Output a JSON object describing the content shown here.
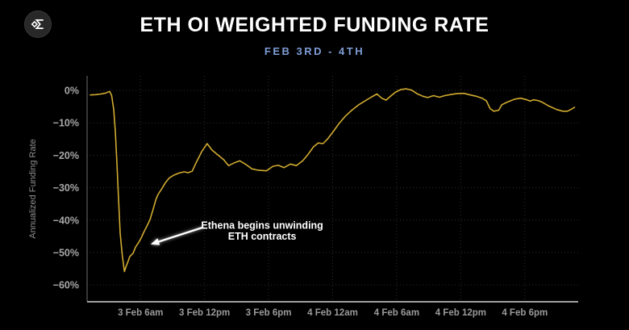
{
  "header": {
    "logo_name": "velo-sigma-logo",
    "title": "ETH OI WEIGHTED FUNDING RATE",
    "subtitle": "FEB 3RD - 4TH",
    "subtitle_color": "#7f9ed6"
  },
  "chart_data": {
    "type": "line",
    "title": "ETH OI WEIGHTED FUNDING RATE",
    "subtitle": "FEB 3RD - 4TH",
    "ylabel": "Annualized Funding Rate",
    "x_unit": "hours since 3 Feb 12am",
    "x_range": [
      1,
      47
    ],
    "y_range": [
      -65.2,
      4.5
    ],
    "grid": true,
    "legend": "none",
    "line_color": "#d1ab30",
    "grid_color": "#2e2e2e",
    "axis_color": "#9e9e9e",
    "tick_color": "#a8a8a8",
    "y_ticks": [
      {
        "label": "0%",
        "v": 0
      },
      {
        "label": "−10%",
        "v": -10
      },
      {
        "label": "−20%",
        "v": -20
      },
      {
        "label": "−30%",
        "v": -30
      },
      {
        "label": "−40%",
        "v": -40
      },
      {
        "label": "−50%",
        "v": -50
      },
      {
        "label": "−60%",
        "v": -60
      }
    ],
    "x_ticks": [
      {
        "label": "3 Feb 6am",
        "t": 6
      },
      {
        "label": "3 Feb 12pm",
        "t": 12
      },
      {
        "label": "3 Feb 6pm",
        "t": 18
      },
      {
        "label": "4 Feb 12am",
        "t": 24
      },
      {
        "label": "4 Feb 6am",
        "t": 30
      },
      {
        "label": "4 Feb 12pm",
        "t": 36
      },
      {
        "label": "4 Feb 6pm",
        "t": 42
      }
    ],
    "series": [
      {
        "name": "ETH OI weighted funding rate (annualized)",
        "points": [
          [
            1.3,
            -1.4
          ],
          [
            1.8,
            -1.3
          ],
          [
            2.3,
            -1.1
          ],
          [
            2.75,
            -0.8
          ],
          [
            3.1,
            -0.3
          ],
          [
            3.3,
            -1.5
          ],
          [
            3.5,
            -6
          ],
          [
            3.65,
            -13
          ],
          [
            3.8,
            -23
          ],
          [
            3.95,
            -34
          ],
          [
            4.1,
            -44
          ],
          [
            4.3,
            -51
          ],
          [
            4.5,
            -55.9
          ],
          [
            4.65,
            -54.3
          ],
          [
            4.8,
            -53.1
          ],
          [
            5.0,
            -51.2
          ],
          [
            5.3,
            -50.3
          ],
          [
            5.55,
            -48.3
          ],
          [
            5.85,
            -46.8
          ],
          [
            6.1,
            -45.3
          ],
          [
            6.3,
            -43.8
          ],
          [
            6.7,
            -41.2
          ],
          [
            6.9,
            -39.8
          ],
          [
            7.2,
            -36.5
          ],
          [
            7.45,
            -33.6
          ],
          [
            7.65,
            -32.1
          ],
          [
            8.0,
            -30.3
          ],
          [
            8.35,
            -28.4
          ],
          [
            8.7,
            -27.0
          ],
          [
            9.1,
            -26.2
          ],
          [
            9.6,
            -25.5
          ],
          [
            10.1,
            -25.1
          ],
          [
            10.45,
            -25.4
          ],
          [
            10.85,
            -24.9
          ],
          [
            11.2,
            -22.4
          ],
          [
            11.75,
            -18.8
          ],
          [
            12.25,
            -16.4
          ],
          [
            12.7,
            -18.4
          ],
          [
            13.25,
            -19.9
          ],
          [
            13.8,
            -21.4
          ],
          [
            14.25,
            -23.2
          ],
          [
            14.8,
            -22.3
          ],
          [
            15.3,
            -21.7
          ],
          [
            15.9,
            -22.9
          ],
          [
            16.45,
            -24.2
          ],
          [
            17.0,
            -24.6
          ],
          [
            17.8,
            -24.8
          ],
          [
            18.4,
            -23.4
          ],
          [
            18.9,
            -23.1
          ],
          [
            19.45,
            -23.8
          ],
          [
            20.05,
            -22.7
          ],
          [
            20.6,
            -23.2
          ],
          [
            21.2,
            -21.7
          ],
          [
            21.7,
            -19.7
          ],
          [
            22.2,
            -17.4
          ],
          [
            22.65,
            -16.2
          ],
          [
            23.1,
            -16.4
          ],
          [
            23.55,
            -14.9
          ],
          [
            24.05,
            -12.7
          ],
          [
            24.6,
            -10.2
          ],
          [
            25.2,
            -7.9
          ],
          [
            25.8,
            -6.1
          ],
          [
            26.4,
            -4.5
          ],
          [
            27.0,
            -3.3
          ],
          [
            27.6,
            -2.1
          ],
          [
            28.15,
            -1.1
          ],
          [
            28.6,
            -2.4
          ],
          [
            29.0,
            -3.0
          ],
          [
            29.45,
            -1.7
          ],
          [
            29.9,
            -0.5
          ],
          [
            30.4,
            0.3
          ],
          [
            30.9,
            0.5
          ],
          [
            31.4,
            0.1
          ],
          [
            31.9,
            -1.0
          ],
          [
            32.45,
            -1.8
          ],
          [
            32.9,
            -2.2
          ],
          [
            33.45,
            -1.6
          ],
          [
            34.0,
            -2.1
          ],
          [
            34.5,
            -1.6
          ],
          [
            35.0,
            -1.3
          ],
          [
            35.6,
            -1.0
          ],
          [
            36.3,
            -0.9
          ],
          [
            36.9,
            -1.4
          ],
          [
            37.45,
            -1.8
          ],
          [
            38.0,
            -2.4
          ],
          [
            38.4,
            -3.2
          ],
          [
            38.75,
            -5.6
          ],
          [
            39.1,
            -6.4
          ],
          [
            39.55,
            -6.1
          ],
          [
            39.85,
            -4.4
          ],
          [
            40.3,
            -3.7
          ],
          [
            41.05,
            -2.7
          ],
          [
            41.6,
            -2.4
          ],
          [
            42.1,
            -2.8
          ],
          [
            42.5,
            -3.3
          ],
          [
            42.8,
            -2.9
          ],
          [
            43.2,
            -3.1
          ],
          [
            43.55,
            -3.5
          ],
          [
            44.25,
            -4.8
          ],
          [
            45.0,
            -5.9
          ],
          [
            45.55,
            -6.4
          ],
          [
            46.0,
            -6.4
          ],
          [
            46.35,
            -5.8
          ],
          [
            46.65,
            -5.2
          ]
        ]
      }
    ],
    "annotation": {
      "lines": [
        "Ethena begins unwinding",
        "ETH contracts"
      ],
      "text_at": [
        17.4,
        -42.7
      ],
      "arrow_from": [
        11.9,
        -42.2
      ],
      "arrow_to": [
        7.1,
        -47.3
      ],
      "color": "#ffffff"
    }
  }
}
